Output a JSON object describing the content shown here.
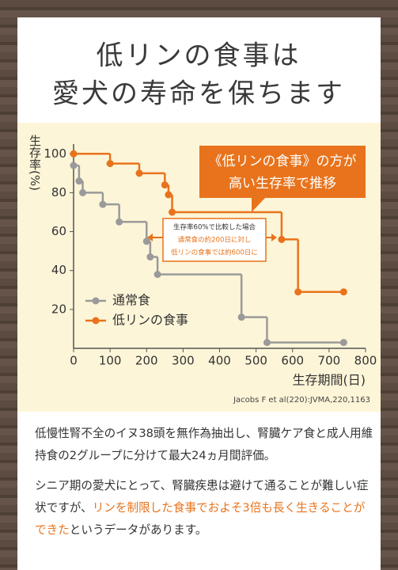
{
  "title_lines": [
    "低リンの食事は",
    "愛犬の寿命を保ちます"
  ],
  "chart_data": {
    "type": "line",
    "step": true,
    "y_label": "生存率(%)",
    "x_label": "生存期間(日)",
    "xlim": [
      0,
      800
    ],
    "xticks": [
      0,
      100,
      200,
      300,
      400,
      500,
      600,
      700,
      800
    ],
    "ylim": [
      0,
      105
    ],
    "yticks": [
      20,
      40,
      60,
      80,
      100
    ],
    "series": [
      {
        "name": "通常食",
        "color": "#9a9a9a",
        "x": [
          0,
          15,
          25,
          80,
          125,
          200,
          210,
          230,
          460,
          530,
          740
        ],
        "values": [
          94,
          86,
          80,
          74,
          65,
          55,
          47,
          38,
          16,
          3,
          3
        ]
      },
      {
        "name": "低リンの食事",
        "color": "#e8731c",
        "x": [
          0,
          100,
          180,
          250,
          260,
          270,
          570,
          615,
          740
        ],
        "values": [
          100,
          95,
          90,
          84,
          79,
          70,
          56,
          29,
          29
        ]
      }
    ],
    "callout": [
      "《低リンの食事》の方が",
      "高い生存率で推移"
    ],
    "annotation": [
      "生存率60%で比較した場合",
      "通常食の約200日に対し",
      "低リンの食事では約600日に"
    ],
    "source": "Jacobs F et al(220):JVMA,220,1163"
  },
  "paragraphs": [
    [
      "低慢性腎不全のイヌ38頭を無作為抽出し、腎臓ケア食と成人用維持食の2グループに分けて最大24ヵ月間評価。"
    ],
    [
      "シニア期の愛犬にとって、腎臓疾患は避けて通ることが難しい症状ですが、",
      "リンを制限した食事でおよそ3倍も長く生きることができた",
      "というデータがあります。"
    ]
  ]
}
